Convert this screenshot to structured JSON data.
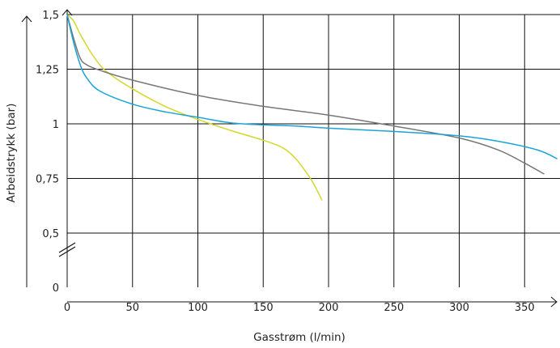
{
  "chart_data": {
    "type": "line",
    "xlabel": "Gasstrøm (l/min)",
    "ylabel": "Arbeidstrykk (bar)",
    "xlim": [
      0,
      375
    ],
    "ylim": [
      0,
      1.5
    ],
    "x_ticks": [
      0,
      50,
      100,
      150,
      200,
      250,
      300,
      350
    ],
    "x_tick_labels": [
      "0",
      "50",
      "100",
      "150",
      "200",
      "250",
      "300",
      "350"
    ],
    "y_ticks": [
      0,
      0.5,
      0.75,
      1,
      1.25,
      1.5
    ],
    "y_tick_labels": [
      "0",
      "0,5",
      "0,75",
      "1",
      "1,25",
      "1,5"
    ],
    "y_axis_break": true,
    "grid": true,
    "series": [
      {
        "color": "#d4d82a",
        "x": [
          0,
          5,
          10,
          20,
          30,
          50,
          75,
          100,
          125,
          150,
          165,
          175,
          185,
          190,
          195
        ],
        "y": [
          1.5,
          1.47,
          1.41,
          1.31,
          1.24,
          1.16,
          1.08,
          1.02,
          0.97,
          0.925,
          0.89,
          0.84,
          0.76,
          0.71,
          0.65
        ]
      },
      {
        "color": "#777777",
        "x": [
          0,
          5,
          10,
          15,
          25,
          50,
          100,
          150,
          200,
          250,
          300,
          330,
          350,
          365
        ],
        "y": [
          1.5,
          1.39,
          1.3,
          1.27,
          1.245,
          1.2,
          1.13,
          1.08,
          1.04,
          0.99,
          0.935,
          0.88,
          0.82,
          0.77
        ]
      },
      {
        "color": "#1aa3d9",
        "x": [
          0,
          5,
          10,
          15,
          25,
          50,
          75,
          100,
          125,
          150,
          175,
          200,
          250,
          300,
          330,
          360,
          375
        ],
        "y": [
          1.5,
          1.37,
          1.27,
          1.21,
          1.15,
          1.09,
          1.055,
          1.03,
          1.005,
          0.995,
          0.99,
          0.98,
          0.965,
          0.945,
          0.92,
          0.88,
          0.84
        ]
      }
    ]
  }
}
